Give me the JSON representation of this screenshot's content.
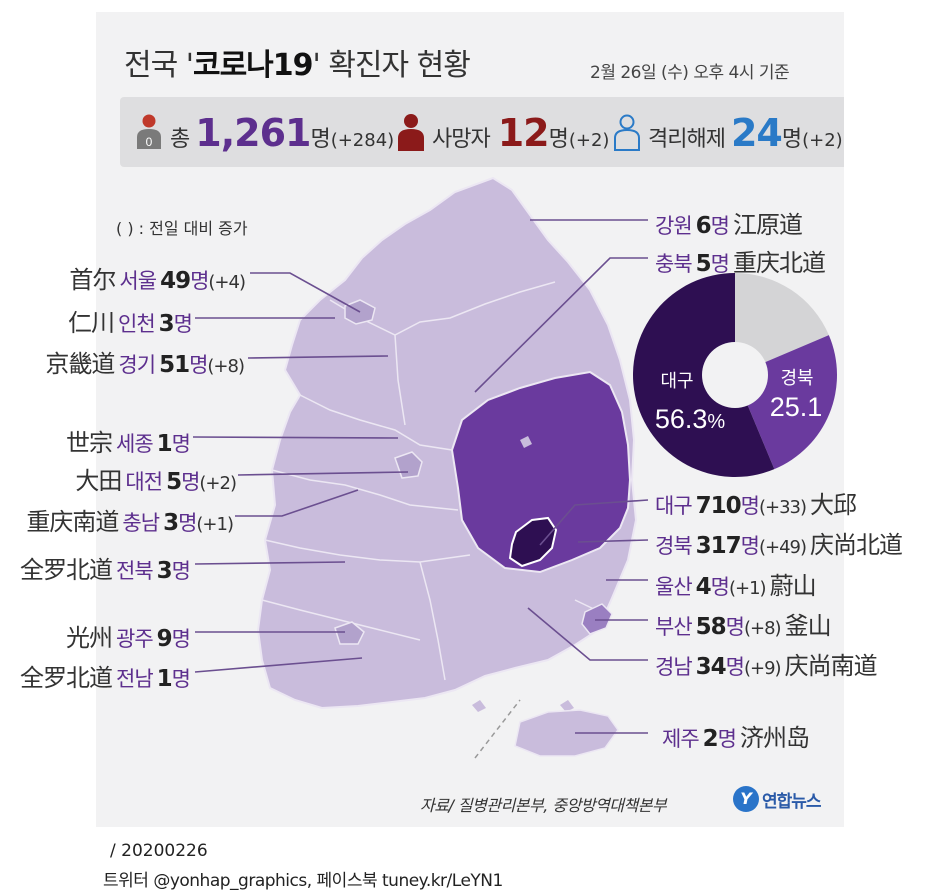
{
  "header": {
    "title_pre": "전국 '",
    "title_highlight": "코로나19",
    "title_post": "' 확진자 현황",
    "date": "2월 26일 (수) 오후 4시 기준"
  },
  "summary": {
    "total_label": "총",
    "total_value": "1,261",
    "total_unit": "명",
    "total_change": "(+284)",
    "total_icon_badge": "0",
    "deaths_label": "사망자",
    "deaths_value": "12",
    "deaths_unit": "명",
    "deaths_change": "(+2)",
    "released_label": "격리해제",
    "released_value": "24",
    "released_unit": "명",
    "released_change": "(+2)"
  },
  "note": "( ) : 전일 대비 증가",
  "regions_left": [
    {
      "hanja": "首尔",
      "name": "서울",
      "count": "49",
      "unit": "명",
      "change": "(+4)"
    },
    {
      "hanja": "仁川",
      "name": "인천",
      "count": "3",
      "unit": "명",
      "change": ""
    },
    {
      "hanja": "京畿道",
      "name": "경기",
      "count": "51",
      "unit": "명",
      "change": "(+8)"
    },
    {
      "hanja": "世宗",
      "name": "세종",
      "count": "1",
      "unit": "명",
      "change": ""
    },
    {
      "hanja": "大田",
      "name": "대전",
      "count": "5",
      "unit": "명",
      "change": "(+2)"
    },
    {
      "hanja": "重庆南道",
      "name": "충남",
      "count": "3",
      "unit": "명",
      "change": "(+1)"
    },
    {
      "hanja": "全罗北道",
      "name": "전북",
      "count": "3",
      "unit": "명",
      "change": ""
    },
    {
      "hanja": "光州",
      "name": "광주",
      "count": "9",
      "unit": "명",
      "change": ""
    },
    {
      "hanja": "全罗北道",
      "name": "전남",
      "count": "1",
      "unit": "명",
      "change": ""
    }
  ],
  "regions_right": [
    {
      "name": "강원",
      "count": "6",
      "unit": "명",
      "change": "",
      "hanja": "江原道"
    },
    {
      "name": "충북",
      "count": "5",
      "unit": "명",
      "change": "",
      "hanja": "重庆北道"
    },
    {
      "name": "대구",
      "count": "710",
      "unit": "명",
      "change": "(+33)",
      "hanja": "大邱"
    },
    {
      "name": "경북",
      "count": "317",
      "unit": "명",
      "change": "(+49)",
      "hanja": "庆尚北道"
    },
    {
      "name": "울산",
      "count": "4",
      "unit": "명",
      "change": "(+1)",
      "hanja": "蔚山"
    },
    {
      "name": "부산",
      "count": "58",
      "unit": "명",
      "change": "(+8)",
      "hanja": "釜山"
    },
    {
      "name": "경남",
      "count": "34",
      "unit": "명",
      "change": "(+9)",
      "hanja": "庆尚南道"
    },
    {
      "name": "제주",
      "count": "2",
      "unit": "명",
      "change": "",
      "hanja": "济州岛"
    }
  ],
  "pie": {
    "slices": [
      {
        "label": "대구",
        "value": 56.3,
        "value_text": "56.3",
        "suffix": "%",
        "color": "#2e0f52"
      },
      {
        "label": "경북",
        "value": 25.1,
        "value_text": "25.1",
        "suffix": "",
        "color": "#6a3a9e"
      },
      {
        "label": "",
        "value": 18.6,
        "value_text": "",
        "suffix": "",
        "color": "#d4d4d6"
      }
    ]
  },
  "colors": {
    "map_light": "#c9bcdc",
    "map_mid": "#7c54ac",
    "map_dark": "#3e1c66",
    "accent_purple": "#5d2f8e",
    "deaths_red": "#8b1a1a",
    "released_blue": "#2a7ac7"
  },
  "footer": {
    "source": "자료/ 질병관리본부, 중앙방역대책본부",
    "logo_mark": "Y",
    "logo_text": "연합뉴스",
    "credit_date": "/ 20200226",
    "credit_social": "트위터 @yonhap_graphics, 페이스북 tuney.kr/LeYN1"
  }
}
